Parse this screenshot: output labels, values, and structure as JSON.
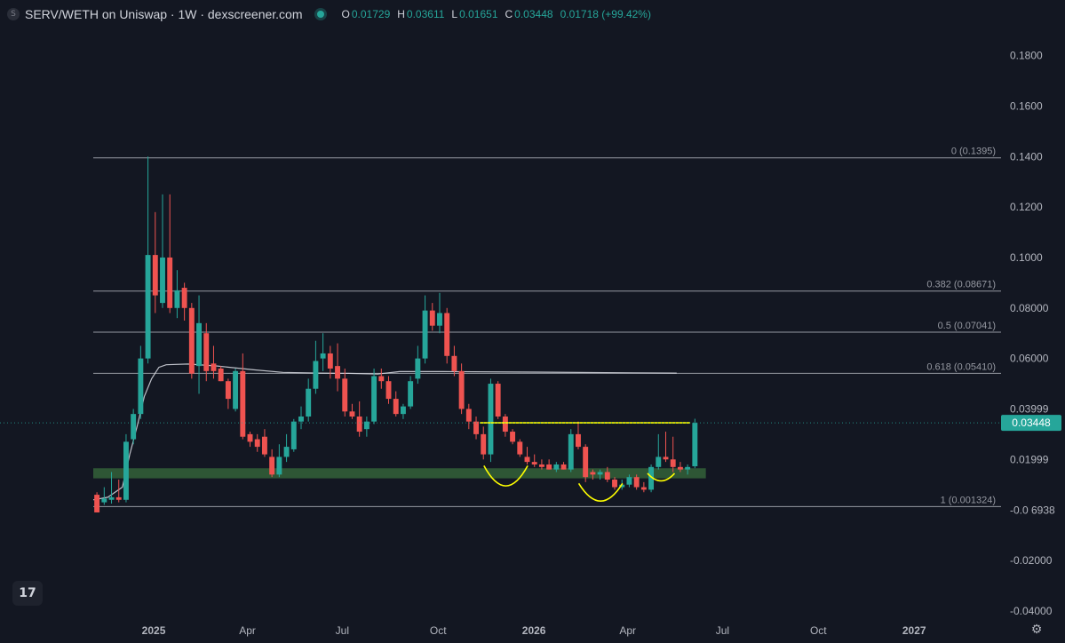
{
  "header": {
    "symbol_icon": "S",
    "title": "SERV/WETH on Uniswap · 1W · dexscreener.com",
    "status_icon": "live-dot-icon",
    "ohlc": {
      "o_label": "O",
      "o_value": "0.01729",
      "h_label": "H",
      "h_value": "0.03611",
      "l_label": "L",
      "l_value": "0.01651",
      "c_label": "C",
      "c_value": "0.03448",
      "change": "0.01718 (+99.42%)"
    }
  },
  "colors": {
    "background": "#131722",
    "up": "#26a69a",
    "down": "#ef5350",
    "axis_text": "#b2b5be",
    "fib_line": "#9598a1",
    "ma_line": "#d1d4dc",
    "annotation": "#ffff00",
    "zone": "#2f5a37",
    "price_tag": "#26a69a"
  },
  "chart_data": {
    "type": "candlestick",
    "timeframe": "1W",
    "ylim": [
      -0.045,
      0.195
    ],
    "xlim": [
      "2024-11-04",
      "2027-02-15"
    ],
    "y_ticks": [
      {
        "v": 0.18,
        "label": "0.1800"
      },
      {
        "v": 0.16,
        "label": "0.1600"
      },
      {
        "v": 0.14,
        "label": "0.1400"
      },
      {
        "v": 0.12,
        "label": "0.1200"
      },
      {
        "v": 0.1,
        "label": "0.1000"
      },
      {
        "v": 0.08,
        "label": "0.08000"
      },
      {
        "v": 0.06,
        "label": "0.06000"
      },
      {
        "v": 0.03999,
        "label": "0.03999"
      },
      {
        "v": 0.01999,
        "label": "0.01999"
      },
      {
        "v": -6.9e-05,
        "label": "-0.0 6938"
      },
      {
        "v": -0.02,
        "label": "-0.02000"
      },
      {
        "v": -0.04,
        "label": "-0.04000"
      }
    ],
    "x_ticks": [
      {
        "date": "2025-01-01",
        "label": "2025",
        "bold": true
      },
      {
        "date": "2025-04-01",
        "label": "Apr",
        "bold": false
      },
      {
        "date": "2025-07-01",
        "label": "Jul",
        "bold": false
      },
      {
        "date": "2025-10-01",
        "label": "Oct",
        "bold": false
      },
      {
        "date": "2026-01-01",
        "label": "2026",
        "bold": true
      },
      {
        "date": "2026-04-01",
        "label": "Apr",
        "bold": false
      },
      {
        "date": "2026-07-01",
        "label": "Jul",
        "bold": false
      },
      {
        "date": "2026-10-01",
        "label": "Oct",
        "bold": false
      },
      {
        "date": "2027-01-01",
        "label": "2027",
        "bold": true
      }
    ],
    "fib_levels": [
      {
        "label": "0 (0.1395)",
        "value": 0.1395
      },
      {
        "label": "0.382 (0.08671)",
        "value": 0.08671
      },
      {
        "label": "0.5 (0.07041)",
        "value": 0.07041
      },
      {
        "label": "0.618 (0.05410)",
        "value": 0.0541
      },
      {
        "label": "1 (0.001324)",
        "value": 0.001324
      }
    ],
    "fib_start_date": "2024-11-04",
    "current_price": {
      "value": 0.03448,
      "label": "0.03448"
    },
    "support_zone": {
      "low": 0.0125,
      "high": 0.0165,
      "start": "2024-11-04",
      "end": "2026-06-15"
    },
    "resistance_line": {
      "value": 0.0345,
      "start": "2025-11-10",
      "end": "2026-05-31"
    },
    "annotation_arcs": [
      {
        "start": "2025-11-14",
        "end": "2025-12-26",
        "y_top": 0.0175,
        "y_bottom": 0.0095
      },
      {
        "start": "2026-02-13",
        "end": "2026-03-27",
        "y_top": 0.0105,
        "y_bottom": 0.0035
      },
      {
        "start": "2026-04-20",
        "end": "2026-05-16",
        "y_top": 0.0145,
        "y_bottom": 0.0115
      }
    ],
    "ma_series": [
      {
        "date": "2024-11-04",
        "v": 0.004
      },
      {
        "date": "2024-11-18",
        "v": 0.005
      },
      {
        "date": "2024-12-02",
        "v": 0.009
      },
      {
        "date": "2024-12-09",
        "v": 0.022
      },
      {
        "date": "2024-12-16",
        "v": 0.033
      },
      {
        "date": "2024-12-23",
        "v": 0.045
      },
      {
        "date": "2024-12-30",
        "v": 0.052
      },
      {
        "date": "2025-01-06",
        "v": 0.0565
      },
      {
        "date": "2025-01-13",
        "v": 0.0575
      },
      {
        "date": "2025-02-03",
        "v": 0.0578
      },
      {
        "date": "2025-03-03",
        "v": 0.057
      },
      {
        "date": "2025-04-07",
        "v": 0.0555
      },
      {
        "date": "2025-05-05",
        "v": 0.0545
      },
      {
        "date": "2025-06-09",
        "v": 0.0542
      },
      {
        "date": "2025-07-07",
        "v": 0.0541
      },
      {
        "date": "2025-08-04",
        "v": 0.0538
      },
      {
        "date": "2025-08-25",
        "v": 0.0548
      },
      {
        "date": "2025-10-06",
        "v": 0.0548
      },
      {
        "date": "2026-01-05",
        "v": 0.0546
      },
      {
        "date": "2026-04-06",
        "v": 0.0543
      },
      {
        "date": "2026-05-18",
        "v": 0.0542
      }
    ],
    "candles": [
      {
        "date": "2024-11-04",
        "o": 0.006,
        "h": 0.007,
        "l": -0.001,
        "c": -0.001
      },
      {
        "date": "2024-11-11",
        "o": 0.003,
        "h": 0.009,
        "l": 0.002,
        "c": 0.0045
      },
      {
        "date": "2024-11-18",
        "o": 0.004,
        "h": 0.015,
        "l": 0.0025,
        "c": 0.005
      },
      {
        "date": "2024-11-25",
        "o": 0.005,
        "h": 0.012,
        "l": 0.003,
        "c": 0.004
      },
      {
        "date": "2024-12-02",
        "o": 0.004,
        "h": 0.03,
        "l": 0.003,
        "c": 0.027
      },
      {
        "date": "2024-12-09",
        "o": 0.028,
        "h": 0.04,
        "l": 0.026,
        "c": 0.038
      },
      {
        "date": "2024-12-16",
        "o": 0.038,
        "h": 0.065,
        "l": 0.036,
        "c": 0.06
      },
      {
        "date": "2024-12-23",
        "o": 0.06,
        "h": 0.14,
        "l": 0.058,
        "c": 0.101
      },
      {
        "date": "2024-12-30",
        "o": 0.101,
        "h": 0.118,
        "l": 0.078,
        "c": 0.085
      },
      {
        "date": "2025-01-06",
        "o": 0.082,
        "h": 0.125,
        "l": 0.08,
        "c": 0.1
      },
      {
        "date": "2025-01-13",
        "o": 0.1,
        "h": 0.125,
        "l": 0.078,
        "c": 0.08
      },
      {
        "date": "2025-01-20",
        "o": 0.08,
        "h": 0.095,
        "l": 0.076,
        "c": 0.087
      },
      {
        "date": "2025-01-27",
        "o": 0.088,
        "h": 0.09,
        "l": 0.075,
        "c": 0.08
      },
      {
        "date": "2025-02-03",
        "o": 0.08,
        "h": 0.082,
        "l": 0.052,
        "c": 0.054
      },
      {
        "date": "2025-02-10",
        "o": 0.057,
        "h": 0.085,
        "l": 0.046,
        "c": 0.074
      },
      {
        "date": "2025-02-17",
        "o": 0.07,
        "h": 0.074,
        "l": 0.051,
        "c": 0.055
      },
      {
        "date": "2025-02-24",
        "o": 0.058,
        "h": 0.065,
        "l": 0.052,
        "c": 0.055
      },
      {
        "date": "2025-03-03",
        "o": 0.056,
        "h": 0.057,
        "l": 0.051,
        "c": 0.051
      },
      {
        "date": "2025-03-10",
        "o": 0.051,
        "h": 0.052,
        "l": 0.04,
        "c": 0.044
      },
      {
        "date": "2025-03-17",
        "o": 0.04,
        "h": 0.056,
        "l": 0.039,
        "c": 0.055
      },
      {
        "date": "2025-03-24",
        "o": 0.055,
        "h": 0.062,
        "l": 0.028,
        "c": 0.029
      },
      {
        "date": "2025-03-31",
        "o": 0.03,
        "h": 0.031,
        "l": 0.025,
        "c": 0.027
      },
      {
        "date": "2025-04-07",
        "o": 0.028,
        "h": 0.03,
        "l": 0.023,
        "c": 0.025
      },
      {
        "date": "2025-04-14",
        "o": 0.029,
        "h": 0.032,
        "l": 0.021,
        "c": 0.022
      },
      {
        "date": "2025-04-21",
        "o": 0.021,
        "h": 0.024,
        "l": 0.013,
        "c": 0.014
      },
      {
        "date": "2025-04-28",
        "o": 0.014,
        "h": 0.026,
        "l": 0.013,
        "c": 0.021
      },
      {
        "date": "2025-05-05",
        "o": 0.021,
        "h": 0.03,
        "l": 0.019,
        "c": 0.025
      },
      {
        "date": "2025-05-12",
        "o": 0.024,
        "h": 0.036,
        "l": 0.023,
        "c": 0.035
      },
      {
        "date": "2025-05-19",
        "o": 0.035,
        "h": 0.041,
        "l": 0.032,
        "c": 0.037
      },
      {
        "date": "2025-05-26",
        "o": 0.037,
        "h": 0.052,
        "l": 0.035,
        "c": 0.048
      },
      {
        "date": "2025-06-02",
        "o": 0.048,
        "h": 0.067,
        "l": 0.046,
        "c": 0.059
      },
      {
        "date": "2025-06-09",
        "o": 0.06,
        "h": 0.07,
        "l": 0.055,
        "c": 0.062
      },
      {
        "date": "2025-06-16",
        "o": 0.062,
        "h": 0.065,
        "l": 0.052,
        "c": 0.056
      },
      {
        "date": "2025-06-23",
        "o": 0.057,
        "h": 0.066,
        "l": 0.047,
        "c": 0.052
      },
      {
        "date": "2025-06-30",
        "o": 0.052,
        "h": 0.056,
        "l": 0.037,
        "c": 0.039
      },
      {
        "date": "2025-07-07",
        "o": 0.039,
        "h": 0.042,
        "l": 0.036,
        "c": 0.037
      },
      {
        "date": "2025-07-14",
        "o": 0.037,
        "h": 0.043,
        "l": 0.029,
        "c": 0.031
      },
      {
        "date": "2025-07-21",
        "o": 0.032,
        "h": 0.037,
        "l": 0.029,
        "c": 0.035
      },
      {
        "date": "2025-07-28",
        "o": 0.035,
        "h": 0.056,
        "l": 0.034,
        "c": 0.053
      },
      {
        "date": "2025-08-04",
        "o": 0.053,
        "h": 0.056,
        "l": 0.048,
        "c": 0.051
      },
      {
        "date": "2025-08-11",
        "o": 0.051,
        "h": 0.053,
        "l": 0.042,
        "c": 0.044
      },
      {
        "date": "2025-08-18",
        "o": 0.044,
        "h": 0.047,
        "l": 0.037,
        "c": 0.038
      },
      {
        "date": "2025-08-25",
        "o": 0.038,
        "h": 0.042,
        "l": 0.036,
        "c": 0.041
      },
      {
        "date": "2025-09-01",
        "o": 0.041,
        "h": 0.053,
        "l": 0.04,
        "c": 0.051
      },
      {
        "date": "2025-09-08",
        "o": 0.052,
        "h": 0.065,
        "l": 0.05,
        "c": 0.06
      },
      {
        "date": "2025-09-15",
        "o": 0.06,
        "h": 0.085,
        "l": 0.058,
        "c": 0.079
      },
      {
        "date": "2025-09-22",
        "o": 0.079,
        "h": 0.082,
        "l": 0.071,
        "c": 0.073
      },
      {
        "date": "2025-09-29",
        "o": 0.073,
        "h": 0.086,
        "l": 0.07,
        "c": 0.078
      },
      {
        "date": "2025-10-06",
        "o": 0.078,
        "h": 0.08,
        "l": 0.058,
        "c": 0.061
      },
      {
        "date": "2025-10-13",
        "o": 0.061,
        "h": 0.065,
        "l": 0.053,
        "c": 0.055
      },
      {
        "date": "2025-10-20",
        "o": 0.055,
        "h": 0.058,
        "l": 0.038,
        "c": 0.04
      },
      {
        "date": "2025-10-27",
        "o": 0.04,
        "h": 0.042,
        "l": 0.032,
        "c": 0.035
      },
      {
        "date": "2025-11-03",
        "o": 0.035,
        "h": 0.037,
        "l": 0.028,
        "c": 0.03
      },
      {
        "date": "2025-11-10",
        "o": 0.03,
        "h": 0.033,
        "l": 0.02,
        "c": 0.022
      },
      {
        "date": "2025-11-17",
        "o": 0.022,
        "h": 0.052,
        "l": 0.019,
        "c": 0.05
      },
      {
        "date": "2025-11-24",
        "o": 0.05,
        "h": 0.051,
        "l": 0.036,
        "c": 0.037
      },
      {
        "date": "2025-12-01",
        "o": 0.037,
        "h": 0.038,
        "l": 0.029,
        "c": 0.031
      },
      {
        "date": "2025-12-08",
        "o": 0.031,
        "h": 0.032,
        "l": 0.026,
        "c": 0.027
      },
      {
        "date": "2025-12-15",
        "o": 0.027,
        "h": 0.028,
        "l": 0.021,
        "c": 0.022
      },
      {
        "date": "2025-12-22",
        "o": 0.021,
        "h": 0.025,
        "l": 0.018,
        "c": 0.019
      },
      {
        "date": "2025-12-29",
        "o": 0.019,
        "h": 0.022,
        "l": 0.017,
        "c": 0.018
      },
      {
        "date": "2026-01-05",
        "o": 0.018,
        "h": 0.02,
        "l": 0.016,
        "c": 0.017
      },
      {
        "date": "2026-01-12",
        "o": 0.018,
        "h": 0.02,
        "l": 0.016,
        "c": 0.016
      },
      {
        "date": "2026-01-19",
        "o": 0.016,
        "h": 0.019,
        "l": 0.015,
        "c": 0.018
      },
      {
        "date": "2026-01-26",
        "o": 0.018,
        "h": 0.019,
        "l": 0.016,
        "c": 0.016
      },
      {
        "date": "2026-02-02",
        "o": 0.016,
        "h": 0.032,
        "l": 0.015,
        "c": 0.03
      },
      {
        "date": "2026-02-09",
        "o": 0.03,
        "h": 0.035,
        "l": 0.024,
        "c": 0.025
      },
      {
        "date": "2026-02-16",
        "o": 0.025,
        "h": 0.026,
        "l": 0.011,
        "c": 0.013
      },
      {
        "date": "2026-02-23",
        "o": 0.015,
        "h": 0.016,
        "l": 0.012,
        "c": 0.014
      },
      {
        "date": "2026-03-02",
        "o": 0.014,
        "h": 0.016,
        "l": 0.012,
        "c": 0.015
      },
      {
        "date": "2026-03-09",
        "o": 0.015,
        "h": 0.017,
        "l": 0.011,
        "c": 0.012
      },
      {
        "date": "2026-03-16",
        "o": 0.012,
        "h": 0.013,
        "l": 0.008,
        "c": 0.009
      },
      {
        "date": "2026-03-23",
        "o": 0.009,
        "h": 0.012,
        "l": 0.008,
        "c": 0.01
      },
      {
        "date": "2026-03-30",
        "o": 0.01,
        "h": 0.014,
        "l": 0.009,
        "c": 0.013
      },
      {
        "date": "2026-04-06",
        "o": 0.013,
        "h": 0.014,
        "l": 0.008,
        "c": 0.009
      },
      {
        "date": "2026-04-13",
        "o": 0.009,
        "h": 0.011,
        "l": 0.007,
        "c": 0.008
      },
      {
        "date": "2026-04-20",
        "o": 0.008,
        "h": 0.018,
        "l": 0.007,
        "c": 0.017
      },
      {
        "date": "2026-04-27",
        "o": 0.017,
        "h": 0.03,
        "l": 0.016,
        "c": 0.021
      },
      {
        "date": "2026-05-04",
        "o": 0.021,
        "h": 0.031,
        "l": 0.019,
        "c": 0.02
      },
      {
        "date": "2026-05-11",
        "o": 0.02,
        "h": 0.029,
        "l": 0.015,
        "c": 0.017
      },
      {
        "date": "2026-05-18",
        "o": 0.017,
        "h": 0.019,
        "l": 0.015,
        "c": 0.016
      },
      {
        "date": "2026-05-25",
        "o": 0.016,
        "h": 0.018,
        "l": 0.014,
        "c": 0.017
      },
      {
        "date": "2026-06-01",
        "o": 0.01729,
        "h": 0.03611,
        "l": 0.01651,
        "c": 0.03448
      }
    ]
  },
  "footer": {
    "logo_icon": "tradingview-logo-icon",
    "logo_text": "17",
    "settings_icon": "gear-icon",
    "settings_glyph": "⚙"
  }
}
